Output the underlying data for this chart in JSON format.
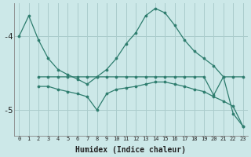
{
  "xlabel": "Humidex (Indice chaleur)",
  "bg_color": "#cce8e8",
  "line_color": "#2e7d6e",
  "grid_color": "#aacccc",
  "xlim": [
    -0.5,
    23.5
  ],
  "ylim": [
    -5.35,
    -3.55
  ],
  "yticks": [
    -5,
    -4
  ],
  "line1_x": [
    0,
    1,
    2,
    3,
    4,
    5,
    6,
    7,
    8,
    9,
    10,
    11,
    12,
    13,
    14,
    15,
    16,
    17,
    18,
    19,
    20,
    21,
    22,
    23
  ],
  "line1_y": [
    -4.0,
    -3.72,
    -4.05,
    -4.3,
    -4.45,
    -4.52,
    -4.58,
    -4.65,
    -4.55,
    -4.45,
    -4.3,
    -4.1,
    -3.95,
    -3.72,
    -3.62,
    -3.68,
    -3.85,
    -4.05,
    -4.2,
    -4.3,
    -4.4,
    -4.55,
    -5.05,
    -5.22
  ],
  "line2_x": [
    2,
    3,
    4,
    5,
    6,
    7,
    8,
    9,
    10,
    11,
    12,
    13,
    14,
    15,
    16,
    17,
    18,
    19,
    20,
    21,
    22,
    23
  ],
  "line2_y": [
    -4.55,
    -4.55,
    -4.55,
    -4.55,
    -4.55,
    -4.55,
    -4.55,
    -4.55,
    -4.55,
    -4.55,
    -4.55,
    -4.55,
    -4.55,
    -4.55,
    -4.55,
    -4.55,
    -4.55,
    -4.55,
    -4.8,
    -4.55,
    -4.55,
    -4.55
  ],
  "line3_x": [
    2,
    3,
    4,
    5,
    6,
    7,
    8,
    9,
    10,
    11,
    12,
    13,
    14,
    15,
    16,
    17,
    18,
    19,
    20,
    21,
    22,
    23
  ],
  "line3_y": [
    -4.68,
    -4.68,
    -4.72,
    -4.75,
    -4.78,
    -4.82,
    -5.0,
    -4.78,
    -4.72,
    -4.7,
    -4.68,
    -4.65,
    -4.62,
    -4.62,
    -4.65,
    -4.68,
    -4.72,
    -4.75,
    -4.82,
    -4.88,
    -4.95,
    -5.22
  ]
}
